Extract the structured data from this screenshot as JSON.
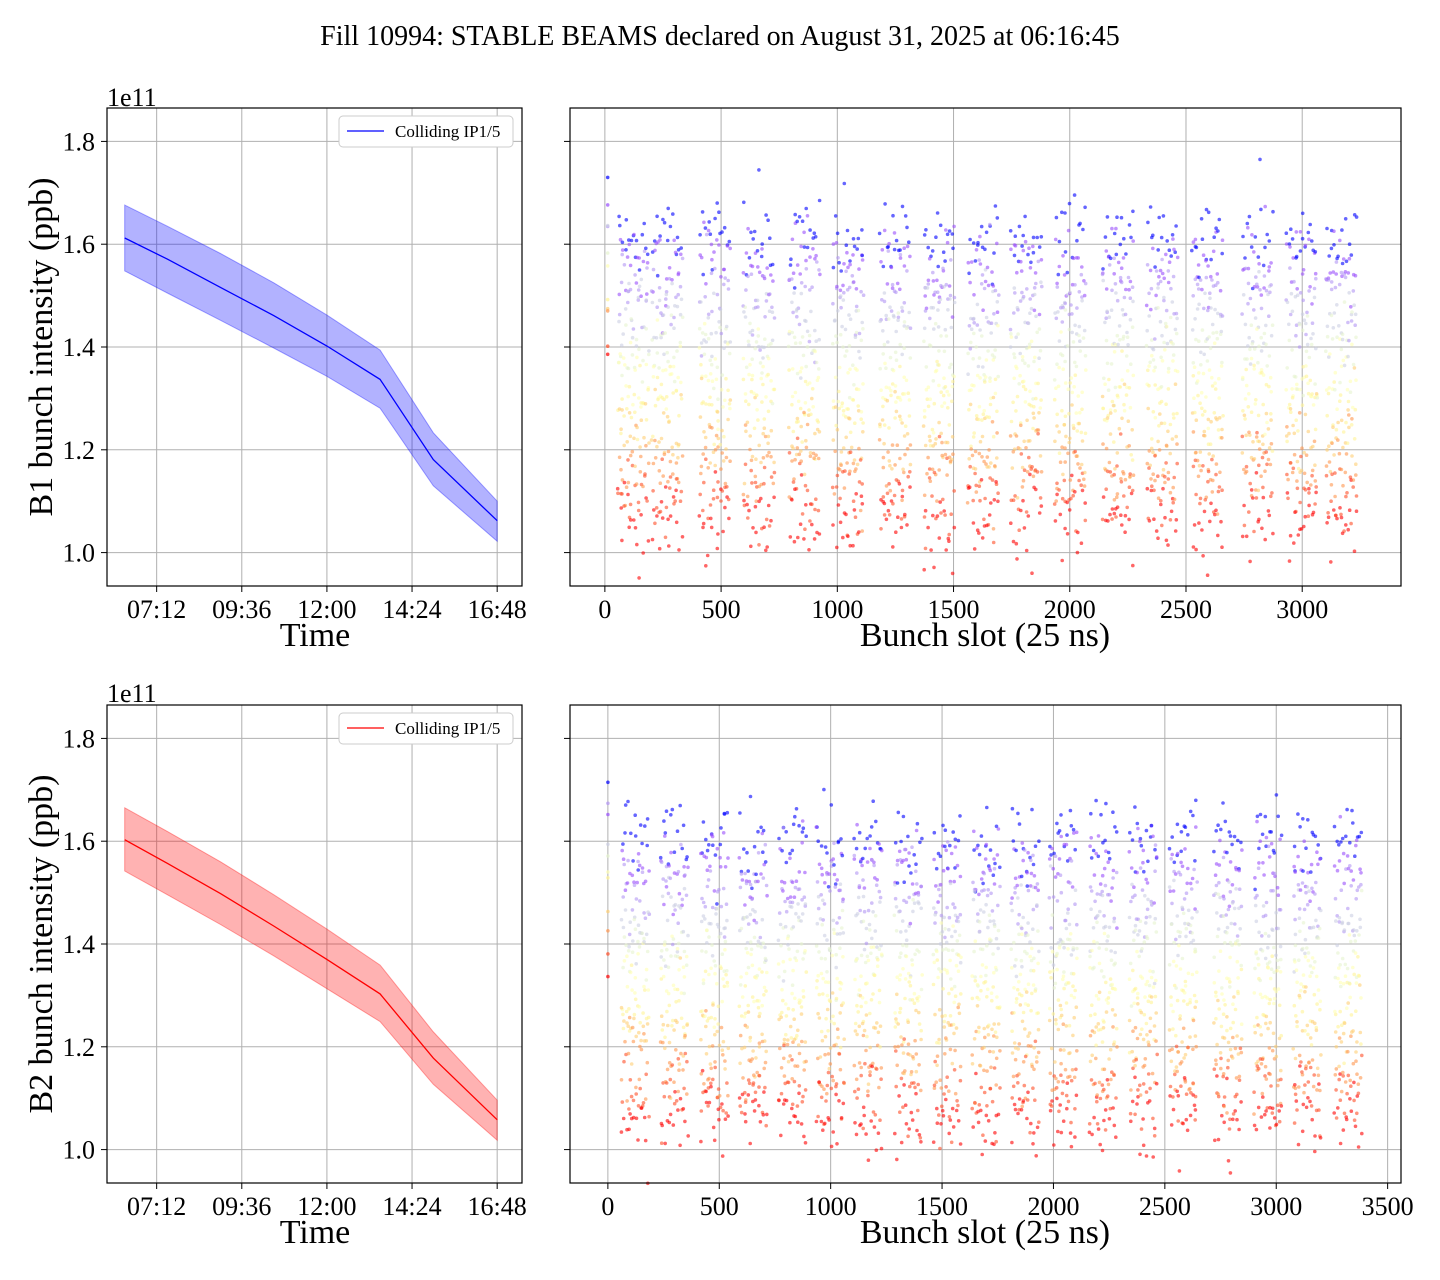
{
  "figure": {
    "title": "Fill 10994: STABLE BEAMS declared on August 31, 2025 at 06:16:45"
  },
  "chart_data": [
    {
      "type": "line",
      "panel": "B1 intensity vs time",
      "xlabel": "Time",
      "ylabel": "B1 bunch intensity (ppb)",
      "y_offset_text": "1e11",
      "x_ticks": [
        "07:12",
        "09:36",
        "12:00",
        "14:24",
        "16:48"
      ],
      "x_tick_hours": [
        7.2,
        9.6,
        12.0,
        14.4,
        16.8
      ],
      "xlim_hours": [
        5.8,
        17.5
      ],
      "y_ticks": [
        "1.0",
        "1.2",
        "1.4",
        "1.6",
        "1.8"
      ],
      "y_tick_values": [
        1.0,
        1.2,
        1.4,
        1.6,
        1.8
      ],
      "ylim": [
        0.935,
        1.865
      ],
      "grid": true,
      "legend": {
        "placement": "upper right",
        "label": "Colliding IP1/5"
      },
      "color": "#0000ff",
      "series": [
        {
          "name": "Colliding IP1/5",
          "x_hours": [
            6.3,
            7.5,
            9.0,
            10.5,
            12.0,
            13.5,
            15.0,
            16.8
          ],
          "mean": [
            1.612,
            1.571,
            1.516,
            1.461,
            1.402,
            1.337,
            1.181,
            1.062
          ],
          "lower": [
            1.548,
            1.505,
            1.452,
            1.398,
            1.343,
            1.281,
            1.13,
            1.022
          ],
          "upper": [
            1.676,
            1.635,
            1.582,
            1.525,
            1.462,
            1.394,
            1.233,
            1.1
          ]
        }
      ]
    },
    {
      "type": "scatter",
      "panel": "B1 intensity per bunch slot",
      "xlabel": "Bunch slot (25 ns)",
      "x_ticks": [
        "0",
        "500",
        "1000",
        "1500",
        "2000",
        "2500",
        "3000"
      ],
      "x_tick_values": [
        0,
        500,
        1000,
        1500,
        2000,
        2500,
        3000
      ],
      "xlim": [
        -150,
        3425
      ],
      "ylim": [
        0.935,
        1.865
      ],
      "grid": true,
      "colormap": "rainbow",
      "colormap_meaning": "color tracks time; purple at start, red at end",
      "train_starts": [
        55,
        200,
        405,
        595,
        790,
        980,
        1180,
        1370,
        1560,
        1745,
        1935,
        2140,
        2330,
        2525,
        2740,
        2930,
        3100
      ],
      "train_length": 135,
      "pilot_slot": 12,
      "mean_start": 1.612,
      "mean_end": 1.062,
      "bunch_spread": 0.04
    },
    {
      "type": "line",
      "panel": "B2 intensity vs time",
      "xlabel": "Time",
      "ylabel": "B2 bunch intensity (ppb)",
      "y_offset_text": "1e11",
      "x_ticks": [
        "07:12",
        "09:36",
        "12:00",
        "14:24",
        "16:48"
      ],
      "x_tick_hours": [
        7.2,
        9.6,
        12.0,
        14.4,
        16.8
      ],
      "xlim_hours": [
        5.8,
        17.5
      ],
      "y_ticks": [
        "1.0",
        "1.2",
        "1.4",
        "1.6",
        "1.8"
      ],
      "y_tick_values": [
        1.0,
        1.2,
        1.4,
        1.6,
        1.8
      ],
      "ylim": [
        0.935,
        1.865
      ],
      "grid": true,
      "legend": {
        "placement": "upper right",
        "label": "Colliding IP1/5"
      },
      "color": "#ff0000",
      "series": [
        {
          "name": "Colliding IP1/5",
          "x_hours": [
            6.3,
            7.5,
            9.0,
            10.5,
            12.0,
            13.5,
            15.0,
            16.8
          ],
          "mean": [
            1.603,
            1.557,
            1.498,
            1.435,
            1.37,
            1.303,
            1.178,
            1.058
          ],
          "lower": [
            1.542,
            1.496,
            1.438,
            1.377,
            1.313,
            1.249,
            1.127,
            1.018
          ],
          "upper": [
            1.665,
            1.619,
            1.56,
            1.496,
            1.429,
            1.359,
            1.229,
            1.096
          ]
        }
      ]
    },
    {
      "type": "scatter",
      "panel": "B2 intensity per bunch slot",
      "xlabel": "Bunch slot (25 ns)",
      "x_ticks": [
        "0",
        "500",
        "1000",
        "1500",
        "2000",
        "2500",
        "3000",
        "3500"
      ],
      "x_tick_values": [
        0,
        500,
        1000,
        1500,
        2000,
        2500,
        3000,
        3500
      ],
      "xlim": [
        -170,
        3560
      ],
      "ylim": [
        0.935,
        1.865
      ],
      "grid": true,
      "colormap": "rainbow",
      "colormap_meaning": "color tracks time; purple at start, red at end",
      "train_starts": [
        60,
        235,
        415,
        590,
        765,
        935,
        1105,
        1285,
        1460,
        1635,
        1810,
        1980,
        2160,
        2340,
        2520,
        2720,
        2900,
        3075,
        3260
      ],
      "train_length": 120,
      "pilot_slot": 0,
      "mean_start": 1.603,
      "mean_end": 1.058,
      "bunch_spread": 0.04
    }
  ]
}
